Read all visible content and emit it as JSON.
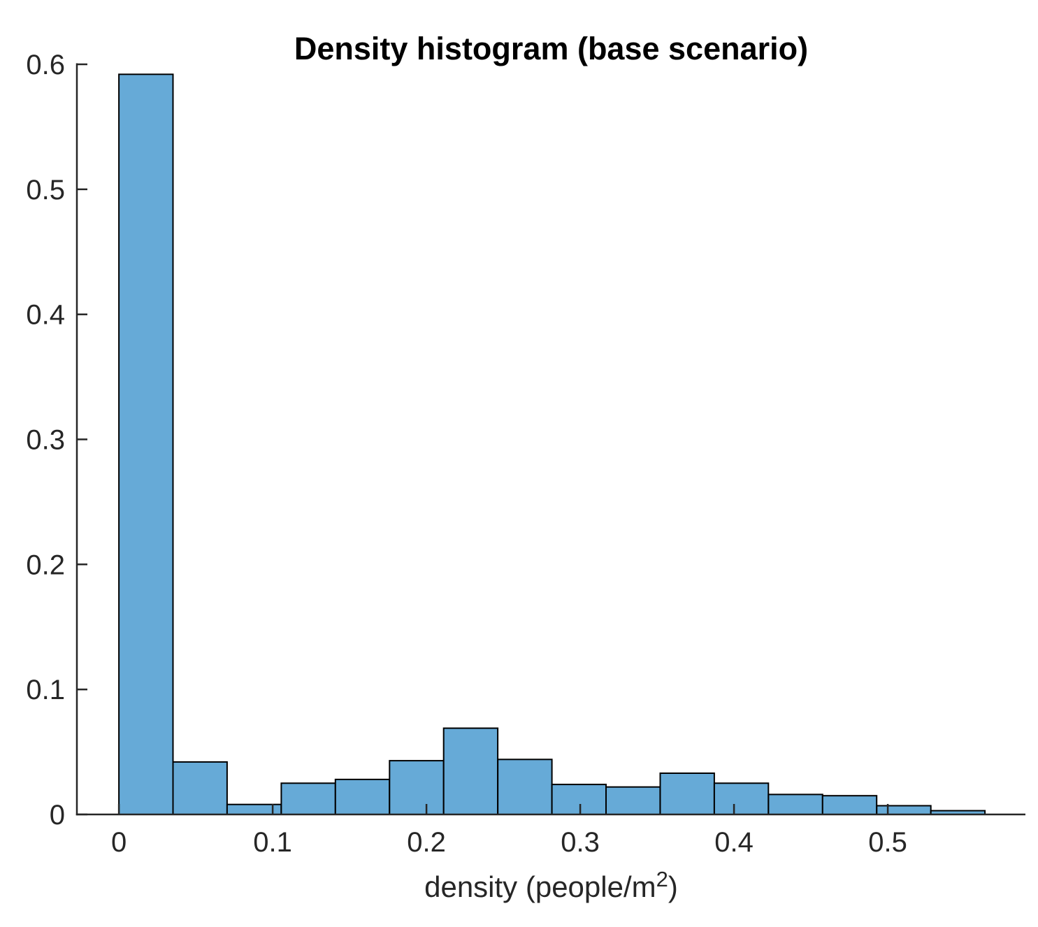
{
  "figure": {
    "background": "#FFFFFF"
  },
  "chart_data": {
    "type": "bar",
    "subtype": "histogram",
    "title": "Density histogram (base scenario)",
    "xlabel": "density (people/m²)",
    "xlabel_parts": {
      "prefix": "density (people/m",
      "superscript": "2",
      "suffix": ")"
    },
    "ylabel": "",
    "normalization": "probability",
    "bin_width": 0.0352,
    "bin_edges": [
      0,
      0.0352,
      0.0704,
      0.1056,
      0.1408,
      0.176,
      0.2112,
      0.2464,
      0.2816,
      0.3168,
      0.352,
      0.3872,
      0.4224,
      0.4576,
      0.4928,
      0.528,
      0.5632
    ],
    "values": [
      0.592,
      0.042,
      0.008,
      0.025,
      0.028,
      0.043,
      0.069,
      0.044,
      0.024,
      0.022,
      0.033,
      0.025,
      0.016,
      0.015,
      0.007,
      0.003
    ],
    "xlim": [
      -0.0273,
      0.5895
    ],
    "ylim": [
      0,
      0.6
    ],
    "xticks": [
      0,
      0.1,
      0.2,
      0.3,
      0.4,
      0.5
    ],
    "xtick_labels": [
      "0",
      "0.1",
      "0.2",
      "0.3",
      "0.4",
      "0.5"
    ],
    "yticks": [
      0,
      0.1,
      0.2,
      0.3,
      0.4,
      0.5,
      0.6
    ],
    "ytick_labels": [
      "0",
      "0.1",
      "0.2",
      "0.3",
      "0.4",
      "0.5",
      "0.6"
    ],
    "grid": false,
    "legend_position": "none",
    "tick_direction": "in",
    "colors": {
      "bar_fill": "#66AAD7",
      "bar_edge": "#000000",
      "axis": "#262626",
      "tick_label": "#262626",
      "title": "#000000",
      "xlabel": "#262626",
      "background": "#FFFFFF"
    }
  }
}
